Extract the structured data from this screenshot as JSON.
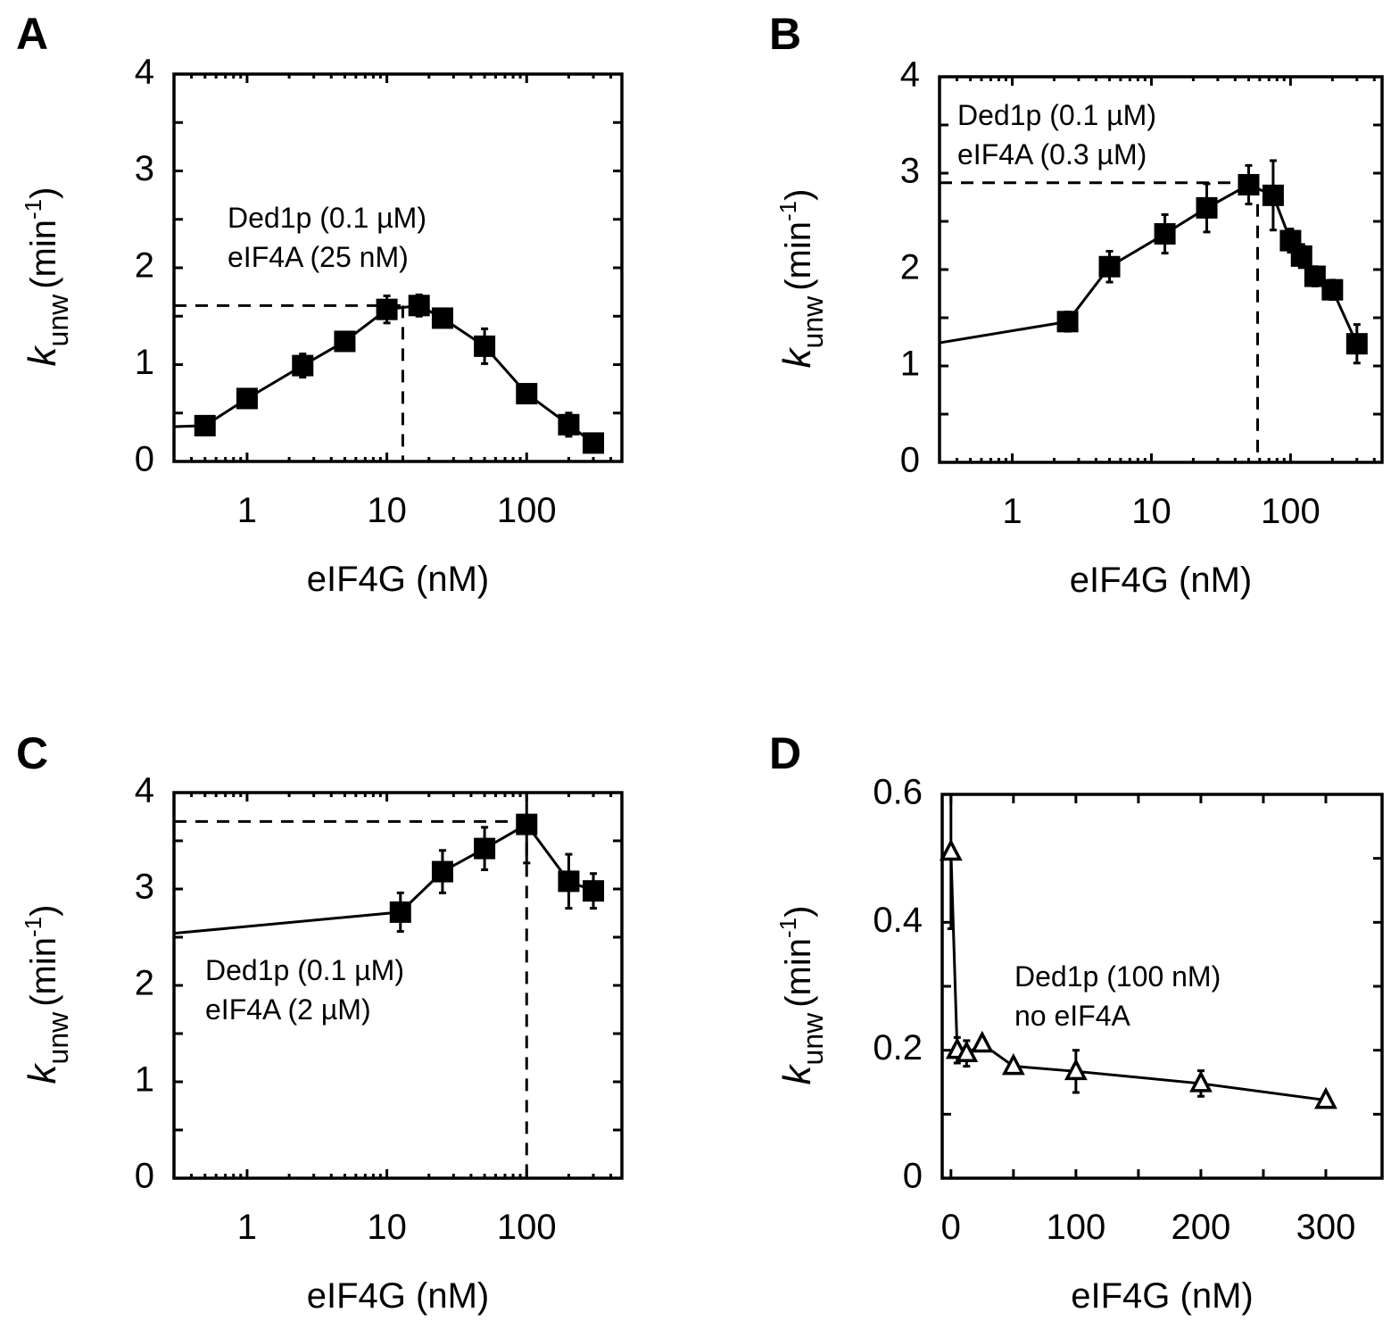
{
  "chart_data": [
    {
      "panel": "A",
      "type": "line",
      "xscale": "log",
      "xlabel": "eIF4G (nM)",
      "ylabel": "k_unw (min^-1)",
      "ylabel_parts": {
        "k": "k",
        "sub": "unw",
        "unit_open": "(min",
        "sup": "-1",
        "unit_close": ")"
      },
      "xlim": [
        0.3,
        480
      ],
      "ylim": [
        0,
        4
      ],
      "xticks": [
        1,
        10,
        100
      ],
      "xtick_labels": [
        "1",
        "10",
        "100"
      ],
      "yticks": [
        0,
        1,
        2,
        3,
        4
      ],
      "ytick_labels": [
        "0",
        "1",
        "2",
        "3",
        "4"
      ],
      "annotation": [
        "Ded1p (0.1 µM)",
        "eIF4A (25 nM)"
      ],
      "annotation_pos": "center",
      "marker": "filled-square",
      "line_start_y": 0.36,
      "series": [
        {
          "name": "Ded1p + eIF4A (25 nM)",
          "x": [
            0.5,
            1,
            2.5,
            5,
            10,
            17,
            25,
            50,
            100,
            200,
            300
          ],
          "y": [
            0.37,
            0.65,
            0.99,
            1.24,
            1.57,
            1.61,
            1.48,
            1.19,
            0.7,
            0.38,
            0.19
          ],
          "err": [
            0.03,
            0.03,
            0.12,
            0.05,
            0.14,
            0.11,
            0.05,
            0.18,
            0.04,
            0.12,
            0.03
          ]
        }
      ],
      "ref_lines": {
        "y": 1.61,
        "x": 13
      }
    },
    {
      "panel": "B",
      "type": "line",
      "xscale": "log",
      "xlabel": "eIF4G (nM)",
      "ylabel": "k_unw (min^-1)",
      "ylabel_parts": {
        "k": "k",
        "sub": "unw",
        "unit_open": "(min",
        "sup": "-1",
        "unit_close": ")"
      },
      "xlim": [
        0.3,
        455
      ],
      "ylim": [
        0,
        4
      ],
      "xticks": [
        1,
        10,
        100
      ],
      "xtick_labels": [
        "1",
        "10",
        "100"
      ],
      "yticks": [
        0,
        1,
        2,
        3,
        4
      ],
      "ytick_labels": [
        "0",
        "1",
        "2",
        "3",
        "4"
      ],
      "annotation": [
        "Ded1p (0.1 µM)",
        "eIF4A (0.3 µM)"
      ],
      "annotation_pos": "top-left",
      "marker": "filled-square",
      "line_start_y": 1.24,
      "series": [
        {
          "name": "Ded1p + eIF4A (0.3 µM)",
          "x": [
            2.5,
            5,
            12.5,
            25,
            50,
            75,
            100,
            120,
            150,
            200,
            300
          ],
          "y": [
            1.46,
            2.03,
            2.37,
            2.64,
            2.88,
            2.77,
            2.3,
            2.14,
            1.93,
            1.79,
            1.23
          ],
          "err": [
            0.1,
            0.16,
            0.2,
            0.25,
            0.2,
            0.36,
            0.12,
            0.12,
            0.1,
            0.1,
            0.2
          ]
        }
      ],
      "ref_lines": {
        "y": 2.9,
        "x": 58
      }
    },
    {
      "panel": "C",
      "type": "line",
      "xscale": "log",
      "xlabel": "eIF4G (nM)",
      "ylabel": "k_unw (min^-1)",
      "ylabel_parts": {
        "k": "k",
        "sub": "unw",
        "unit_open": "(min",
        "sup": "-1",
        "unit_close": ")"
      },
      "xlim": [
        0.3,
        480
      ],
      "ylim": [
        0,
        4
      ],
      "xticks": [
        1,
        10,
        100
      ],
      "xtick_labels": [
        "1",
        "10",
        "100"
      ],
      "yticks": [
        0,
        1,
        2,
        3,
        4
      ],
      "ytick_labels": [
        "0",
        "1",
        "2",
        "3",
        "4"
      ],
      "annotation": [
        "Ded1p (0.1 µM)",
        "eIF4A (2 µM)"
      ],
      "annotation_pos": "center-left",
      "marker": "filled-square",
      "line_start_y": 2.54,
      "series": [
        {
          "name": "Ded1p + eIF4A (2 µM)",
          "x": [
            12.5,
            25,
            50,
            100,
            200,
            300
          ],
          "y": [
            2.76,
            3.18,
            3.42,
            3.67,
            3.08,
            2.98
          ],
          "err": [
            0.2,
            0.22,
            0.22,
            0.4,
            0.28,
            0.18
          ]
        }
      ],
      "ref_lines": {
        "y": 3.7,
        "x": 100
      }
    },
    {
      "panel": "D",
      "type": "line",
      "xscale": "linear",
      "xlabel": "eIF4G (nM)",
      "ylabel": "k_unw (min^-1)",
      "ylabel_parts": {
        "k": "k",
        "sub": "unw",
        "unit_open": "(min",
        "sup": "-1",
        "unit_close": ")"
      },
      "xlim": [
        -7,
        345
      ],
      "ylim": [
        0,
        0.6
      ],
      "xticks": [
        0,
        100,
        200,
        300
      ],
      "xtick_labels": [
        "0",
        "100",
        "200",
        "300"
      ],
      "xminor": [
        50,
        150,
        250
      ],
      "yticks": [
        0,
        0.2,
        0.4,
        0.6
      ],
      "ytick_labels": [
        "0",
        "0.2",
        "0.4",
        "0.6"
      ],
      "yminor": [
        0.1,
        0.3,
        0.5
      ],
      "annotation": [
        "Ded1p (100 nM)",
        "no eIF4A"
      ],
      "annotation_pos": "center-right",
      "marker": "open-triangle",
      "series": [
        {
          "name": "Ded1p, no eIF4A",
          "x": [
            0,
            5,
            12.5,
            25,
            50,
            100,
            200,
            300
          ],
          "y": [
            0.51,
            0.2,
            0.195,
            0.21,
            0.175,
            0.167,
            0.148,
            0.122
          ],
          "err": [
            0.12,
            0.02,
            0.02,
            0.0,
            0.0,
            0.033,
            0.02,
            0.0
          ]
        }
      ]
    }
  ]
}
